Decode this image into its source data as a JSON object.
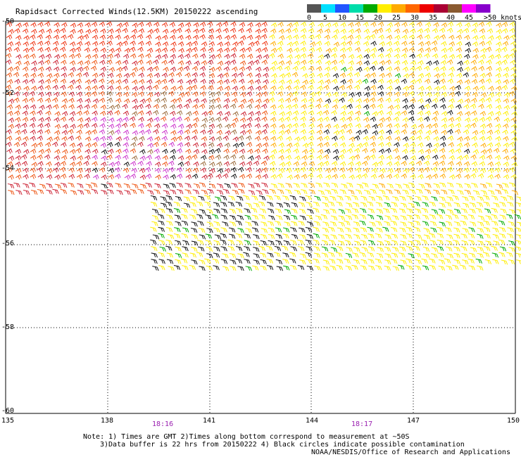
{
  "title": "Rapidsact Corrected Winds(12.5KM) 20150222 ascending",
  "legend": {
    "labels": [
      "0",
      "5",
      "10",
      "15",
      "20",
      "25",
      "30",
      "35",
      "40",
      "45",
      ">50 knots"
    ],
    "colors": [
      "#555555",
      "#00e0ff",
      "#2255ff",
      "#00ddaa",
      "#00aa00",
      "#ffee00",
      "#ffaa00",
      "#ff6600",
      "#ee0000",
      "#aa0033",
      "#8a5a30",
      "#ff00ff",
      "#8800cc"
    ]
  },
  "axes": {
    "lat_labels": [
      "-50",
      "-52",
      "-54",
      "-56",
      "-58",
      "-60"
    ],
    "lon_labels": [
      "135",
      "138",
      "141",
      "144",
      "147",
      "150"
    ]
  },
  "times": [
    "18:16",
    "18:17"
  ],
  "notes": [
    "Note: 1) Times are GMT 2)Times along bottom correspond to measurement at ~50S",
    "3)Data buffer is 22 hrs from 20150222 4) Black circles indicate possible contamination",
    "NOAA/NESDIS/Office of Research and Applications"
  ]
}
